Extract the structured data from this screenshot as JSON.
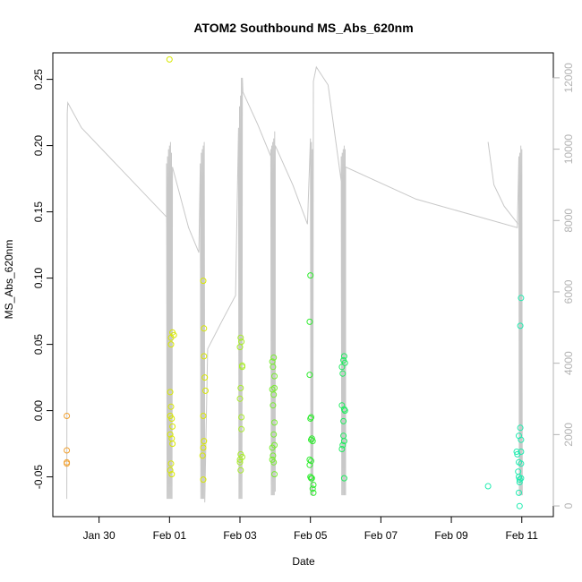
{
  "chart_data": {
    "type": "scatter",
    "title": "ATOM2 Southbound MS_Abs_620nm",
    "xlabel": "Date",
    "ylabel": "MS_Abs_620nm",
    "x_is_date": true,
    "xlim": [
      "2017-01-28T16:30",
      "2017-02-11T21:30"
    ],
    "ylim": [
      -0.08,
      0.27
    ],
    "y2lim": [
      -300,
      12700
    ],
    "x_ticks": [
      {
        "value": "2017-01-30T00:00",
        "label": "Jan 30"
      },
      {
        "value": "2017-02-01T00:00",
        "label": "Feb 01"
      },
      {
        "value": "2017-02-03T00:00",
        "label": "Feb 03"
      },
      {
        "value": "2017-02-05T00:00",
        "label": "Feb 05"
      },
      {
        "value": "2017-02-07T00:00",
        "label": "Feb 07"
      },
      {
        "value": "2017-02-09T00:00",
        "label": "Feb 09"
      },
      {
        "value": "2017-02-11T00:00",
        "label": "Feb 11"
      }
    ],
    "y_ticks": [
      {
        "value": -0.05,
        "label": "-0.05"
      },
      {
        "value": 0.0,
        "label": "0.00"
      },
      {
        "value": 0.05,
        "label": "0.05"
      },
      {
        "value": 0.1,
        "label": "0.10"
      },
      {
        "value": 0.15,
        "label": "0.15"
      },
      {
        "value": 0.2,
        "label": "0.20"
      },
      {
        "value": 0.25,
        "label": "0.25"
      }
    ],
    "y2_ticks": [
      {
        "value": 0,
        "label": "0"
      },
      {
        "value": 2000,
        "label": "2000"
      },
      {
        "value": 4000,
        "label": "4000"
      },
      {
        "value": 6000,
        "label": "6000"
      },
      {
        "value": 8000,
        "label": "8000"
      },
      {
        "value": 10000,
        "label": "10000"
      },
      {
        "value": 12000,
        "label": "12000"
      }
    ],
    "grid": false,
    "legend": "none",
    "line_color": "#c8c8c8",
    "series": [
      {
        "color": "#f0a030",
        "points": [
          [
            "2017-01-29T02:00",
            -0.004
          ],
          [
            "2017-01-29T02:00",
            -0.03
          ],
          [
            "2017-01-29T02:00",
            -0.039
          ],
          [
            "2017-01-29T02:00",
            -0.04
          ]
        ]
      },
      {
        "color": "#d8e800",
        "points": [
          [
            "2017-02-01T00:00",
            0.265
          ],
          [
            "2017-02-01T02:00",
            0.059
          ],
          [
            "2017-02-01T03:00",
            0.057
          ],
          [
            "2017-02-01T01:00",
            0.055
          ],
          [
            "2017-02-01T00:30",
            0.014
          ],
          [
            "2017-02-01T01:00",
            0.003
          ],
          [
            "2017-02-01T00:30",
            -0.004
          ],
          [
            "2017-02-01T01:30",
            -0.006
          ],
          [
            "2017-02-01T02:00",
            -0.012
          ],
          [
            "2017-02-01T00:30",
            -0.018
          ],
          [
            "2017-02-01T01:30",
            -0.021
          ],
          [
            "2017-02-01T02:00",
            -0.025
          ],
          [
            "2017-02-01T01:00",
            -0.04
          ],
          [
            "2017-02-01T00:30",
            -0.045
          ],
          [
            "2017-02-01T01:30",
            -0.048
          ],
          [
            "2017-02-01T01:00",
            0.05
          ],
          [
            "2017-02-01T23:00",
            0.098
          ],
          [
            "2017-02-01T23:30",
            0.062
          ],
          [
            "2017-02-01T23:30",
            0.041
          ],
          [
            "2017-02-02T00:00",
            0.025
          ],
          [
            "2017-02-02T00:30",
            0.015
          ],
          [
            "2017-02-01T23:00",
            -0.004
          ],
          [
            "2017-02-01T23:30",
            -0.023
          ],
          [
            "2017-02-01T23:00",
            -0.028
          ],
          [
            "2017-02-01T22:30",
            -0.034
          ],
          [
            "2017-02-01T23:00",
            -0.052
          ]
        ]
      },
      {
        "color": "#a8ec28",
        "points": [
          [
            "2017-02-03T00:30",
            0.055
          ],
          [
            "2017-02-03T01:00",
            0.052
          ],
          [
            "2017-02-03T00:00",
            0.048
          ],
          [
            "2017-02-03T01:30",
            0.034
          ],
          [
            "2017-02-03T01:30",
            0.033
          ],
          [
            "2017-02-03T00:30",
            0.017
          ],
          [
            "2017-02-03T00:00",
            0.009
          ],
          [
            "2017-02-03T01:00",
            -0.005
          ],
          [
            "2017-02-03T01:00",
            -0.014
          ],
          [
            "2017-02-03T00:30",
            -0.033
          ],
          [
            "2017-02-03T01:30",
            -0.035
          ],
          [
            "2017-02-03T00:00",
            -0.037
          ],
          [
            "2017-02-03T00:00",
            -0.039
          ],
          [
            "2017-02-03T00:30",
            -0.045
          ]
        ]
      },
      {
        "color": "#78ec30",
        "points": [
          [
            "2017-02-03T22:00",
            0.037
          ],
          [
            "2017-02-03T23:00",
            0.04
          ],
          [
            "2017-02-03T22:30",
            0.033
          ],
          [
            "2017-02-03T23:30",
            0.026
          ],
          [
            "2017-02-03T22:00",
            0.016
          ],
          [
            "2017-02-03T23:30",
            0.017
          ],
          [
            "2017-02-03T23:00",
            0.012
          ],
          [
            "2017-02-03T22:30",
            0.004
          ],
          [
            "2017-02-03T23:30",
            -0.009
          ],
          [
            "2017-02-03T23:00",
            -0.018
          ],
          [
            "2017-02-03T22:00",
            -0.028
          ],
          [
            "2017-02-03T23:30",
            -0.026
          ],
          [
            "2017-02-03T22:30",
            -0.034
          ],
          [
            "2017-02-03T22:00",
            -0.037
          ],
          [
            "2017-02-03T23:00",
            -0.039
          ],
          [
            "2017-02-03T23:30",
            -0.048
          ]
        ]
      },
      {
        "color": "#30ec30",
        "points": [
          [
            "2017-02-05T00:00",
            0.102
          ],
          [
            "2017-02-04T23:30",
            0.067
          ],
          [
            "2017-02-04T23:30",
            0.027
          ],
          [
            "2017-02-05T00:30",
            -0.005
          ],
          [
            "2017-02-05T00:00",
            -0.006
          ],
          [
            "2017-02-05T01:00",
            -0.021
          ],
          [
            "2017-02-05T00:30",
            -0.022
          ],
          [
            "2017-02-05T01:30",
            -0.023
          ],
          [
            "2017-02-04T23:30",
            -0.037
          ],
          [
            "2017-02-05T00:30",
            -0.038
          ],
          [
            "2017-02-04T23:30",
            -0.041
          ],
          [
            "2017-02-05T00:00",
            -0.05
          ],
          [
            "2017-02-05T00:30",
            -0.051
          ],
          [
            "2017-02-05T01:00",
            -0.051
          ],
          [
            "2017-02-05T02:00",
            -0.056
          ],
          [
            "2017-02-05T01:30",
            -0.059
          ],
          [
            "2017-02-05T02:00",
            -0.062
          ]
        ]
      },
      {
        "color": "#20ec60",
        "points": [
          [
            "2017-02-05T23:00",
            0.041
          ],
          [
            "2017-02-05T22:30",
            0.038
          ],
          [
            "2017-02-05T23:30",
            0.036
          ],
          [
            "2017-02-05T21:30",
            0.033
          ],
          [
            "2017-02-05T22:00",
            0.028
          ],
          [
            "2017-02-05T21:30",
            0.004
          ],
          [
            "2017-02-05T23:00",
            0.001
          ],
          [
            "2017-02-05T23:30",
            0.0
          ],
          [
            "2017-02-05T22:30",
            -0.008
          ],
          [
            "2017-02-05T22:30",
            -0.019
          ],
          [
            "2017-02-05T23:00",
            -0.023
          ],
          [
            "2017-02-05T22:00",
            -0.026
          ],
          [
            "2017-02-05T21:30",
            -0.029
          ],
          [
            "2017-02-05T23:00",
            -0.051
          ]
        ]
      },
      {
        "color": "#20ecb0",
        "points": [
          [
            "2017-02-10T01:00",
            -0.057
          ],
          [
            "2017-02-10T23:30",
            0.085
          ],
          [
            "2017-02-10T23:00",
            0.064
          ],
          [
            "2017-02-10T23:00",
            -0.013
          ],
          [
            "2017-02-10T22:00",
            -0.019
          ],
          [
            "2017-02-10T23:30",
            -0.022
          ],
          [
            "2017-02-10T20:30",
            -0.031
          ],
          [
            "2017-02-10T23:30",
            -0.031
          ],
          [
            "2017-02-10T21:00",
            -0.033
          ],
          [
            "2017-02-10T22:00",
            -0.039
          ],
          [
            "2017-02-10T23:30",
            -0.04
          ],
          [
            "2017-02-10T21:30",
            -0.046
          ],
          [
            "2017-02-10T22:00",
            -0.05
          ],
          [
            "2017-02-10T23:30",
            -0.051
          ],
          [
            "2017-02-10T22:30",
            -0.052
          ],
          [
            "2017-02-10T22:30",
            -0.054
          ],
          [
            "2017-02-10T22:00",
            -0.062
          ],
          [
            "2017-02-10T22:30",
            -0.072
          ]
        ]
      }
    ],
    "depth_line": [
      [
        "2017-01-29T02:00",
        200
      ],
      [
        "2017-01-29T02:20",
        11000
      ],
      [
        "2017-01-29T02:40",
        11300
      ],
      [
        "2017-01-29T12:00",
        10600
      ],
      [
        "2017-01-31T22:00",
        8100
      ],
      [
        "2017-01-31T22:00",
        9600
      ],
      [
        "2017-01-31T22:20",
        200
      ],
      [
        "2017-01-31T22:40",
        9800
      ],
      [
        "2017-01-31T23:00",
        200
      ],
      [
        "2017-01-31T23:20",
        10000
      ],
      [
        "2017-01-31T23:40",
        200
      ],
      [
        "2017-02-01T00:00",
        10100
      ],
      [
        "2017-02-01T00:20",
        200
      ],
      [
        "2017-02-01T00:40",
        10200
      ],
      [
        "2017-02-01T01:00",
        200
      ],
      [
        "2017-02-01T01:20",
        9900
      ],
      [
        "2017-02-01T01:40",
        200
      ],
      [
        "2017-02-01T02:00",
        9500
      ],
      [
        "2017-02-01T13:00",
        7800
      ],
      [
        "2017-02-01T20:00",
        7100
      ],
      [
        "2017-02-01T21:00",
        9600
      ],
      [
        "2017-02-01T21:20",
        200
      ],
      [
        "2017-02-01T21:40",
        9900
      ],
      [
        "2017-02-01T22:00",
        200
      ],
      [
        "2017-02-01T22:20",
        10000
      ],
      [
        "2017-02-01T22:40",
        200
      ],
      [
        "2017-02-01T23:00",
        10100
      ],
      [
        "2017-02-01T23:20",
        200
      ],
      [
        "2017-02-01T23:40",
        10200
      ],
      [
        "2017-02-02T00:00",
        100
      ],
      [
        "2017-02-02T02:00",
        4400
      ],
      [
        "2017-02-02T12:00",
        5200
      ],
      [
        "2017-02-02T21:00",
        5900
      ],
      [
        "2017-02-02T23:00",
        10600
      ],
      [
        "2017-02-02T23:20",
        200
      ],
      [
        "2017-02-02T23:40",
        11200
      ],
      [
        "2017-02-03T00:00",
        200
      ],
      [
        "2017-02-03T00:20",
        11500
      ],
      [
        "2017-02-03T00:40",
        200
      ],
      [
        "2017-02-03T01:00",
        12000
      ],
      [
        "2017-02-03T01:20",
        200
      ],
      [
        "2017-02-03T01:40",
        12000
      ],
      [
        "2017-02-03T02:00",
        11600
      ],
      [
        "2017-02-03T12:00",
        10700
      ],
      [
        "2017-02-03T21:00",
        9800
      ],
      [
        "2017-02-03T21:00",
        10000
      ],
      [
        "2017-02-03T21:20",
        300
      ],
      [
        "2017-02-03T21:40",
        10100
      ],
      [
        "2017-02-03T22:00",
        300
      ],
      [
        "2017-02-03T22:20",
        10200
      ],
      [
        "2017-02-03T22:40",
        300
      ],
      [
        "2017-02-03T23:00",
        10300
      ],
      [
        "2017-02-03T23:20",
        300
      ],
      [
        "2017-02-03T23:40",
        10500
      ],
      [
        "2017-02-04T00:00",
        400
      ],
      [
        "2017-02-04T00:00",
        10100
      ],
      [
        "2017-02-04T12:00",
        9000
      ],
      [
        "2017-02-04T22:00",
        7900
      ],
      [
        "2017-02-05T00:00",
        10300
      ],
      [
        "2017-02-05T00:20",
        300
      ],
      [
        "2017-02-05T00:40",
        10200
      ],
      [
        "2017-02-05T01:00",
        300
      ],
      [
        "2017-02-05T01:20",
        10000
      ],
      [
        "2017-02-05T01:40",
        300
      ],
      [
        "2017-02-05T02:00",
        11900
      ],
      [
        "2017-02-05T04:00",
        12300
      ],
      [
        "2017-02-05T12:00",
        11800
      ],
      [
        "2017-02-05T21:00",
        9100
      ],
      [
        "2017-02-05T21:00",
        9800
      ],
      [
        "2017-02-05T21:20",
        300
      ],
      [
        "2017-02-05T21:40",
        9900
      ],
      [
        "2017-02-05T22:00",
        300
      ],
      [
        "2017-02-05T22:20",
        10000
      ],
      [
        "2017-02-05T22:40",
        300
      ],
      [
        "2017-02-05T23:00",
        10100
      ],
      [
        "2017-02-05T23:20",
        300
      ],
      [
        "2017-02-05T23:40",
        10000
      ],
      [
        "2017-02-06T00:00",
        300
      ],
      [
        "2017-02-06T00:00",
        9500
      ],
      [
        "2017-02-08T00:00",
        8600
      ],
      [
        "2017-02-10T21:00",
        7800
      ],
      [
        "2017-02-10T22:00",
        9800
      ],
      [
        "2017-02-10T22:20",
        300
      ],
      [
        "2017-02-10T22:40",
        9900
      ],
      [
        "2017-02-10T23:00",
        300
      ],
      [
        "2017-02-10T23:20",
        10100
      ],
      [
        "2017-02-10T23:40",
        300
      ],
      [
        "2017-02-11T00:00",
        10000
      ],
      [
        "2017-02-11T00:20",
        300
      ]
    ],
    "depth_line_extra": [
      [
        "2017-02-10T01:00",
        10200
      ],
      [
        "2017-02-10T05:00",
        9000
      ],
      [
        "2017-02-10T12:00",
        8400
      ],
      [
        "2017-02-10T21:30",
        7900
      ]
    ]
  }
}
